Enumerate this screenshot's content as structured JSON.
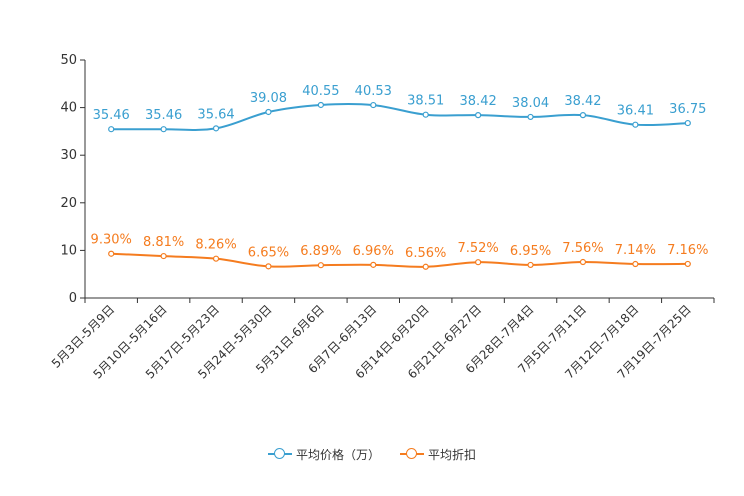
{
  "chart_data": {
    "type": "line",
    "categories": [
      "5月3日-5月9日",
      "5月10日-5月16日",
      "5月17日-5月23日",
      "5月24日-5月30日",
      "5月31日-6月6日",
      "6月7日-6月13日",
      "6月14日-6月20日",
      "6月21日-6月27日",
      "6月28日-7月4日",
      "7月5日-7月11日",
      "7月12日-7月18日",
      "7月19日-7月25日"
    ],
    "series": [
      {
        "name": "平均价格（万）",
        "color": "#3a9fd0",
        "values": [
          35.46,
          35.46,
          35.64,
          39.08,
          40.55,
          40.53,
          38.51,
          38.42,
          38.04,
          38.42,
          36.41,
          36.75
        ],
        "labels": [
          "35.46",
          "35.46",
          "35.64",
          "39.08",
          "40.55",
          "40.53",
          "38.51",
          "38.42",
          "38.04",
          "38.42",
          "36.41",
          "36.75"
        ]
      },
      {
        "name": "平均折扣",
        "color": "#f57c1f",
        "values": [
          9.3,
          8.81,
          8.26,
          6.65,
          6.89,
          6.96,
          6.56,
          7.52,
          6.95,
          7.56,
          7.14,
          7.16
        ],
        "labels": [
          "9.30%",
          "8.81%",
          "8.26%",
          "6.65%",
          "6.89%",
          "6.96%",
          "6.56%",
          "7.52%",
          "6.95%",
          "7.56%",
          "7.14%",
          "7.16%"
        ]
      }
    ],
    "ylim": [
      0,
      50
    ],
    "yticks": [
      "0",
      "10",
      "20",
      "30",
      "40",
      "50"
    ],
    "legend_position": "bottom-center",
    "smooth": true
  }
}
